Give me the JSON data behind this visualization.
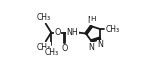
{
  "lc": "#1a1a1a",
  "lw": 1.3,
  "fs": 5.8,
  "xlim": [
    -0.05,
    1.02
  ],
  "ylim": [
    0.05,
    0.95
  ]
}
